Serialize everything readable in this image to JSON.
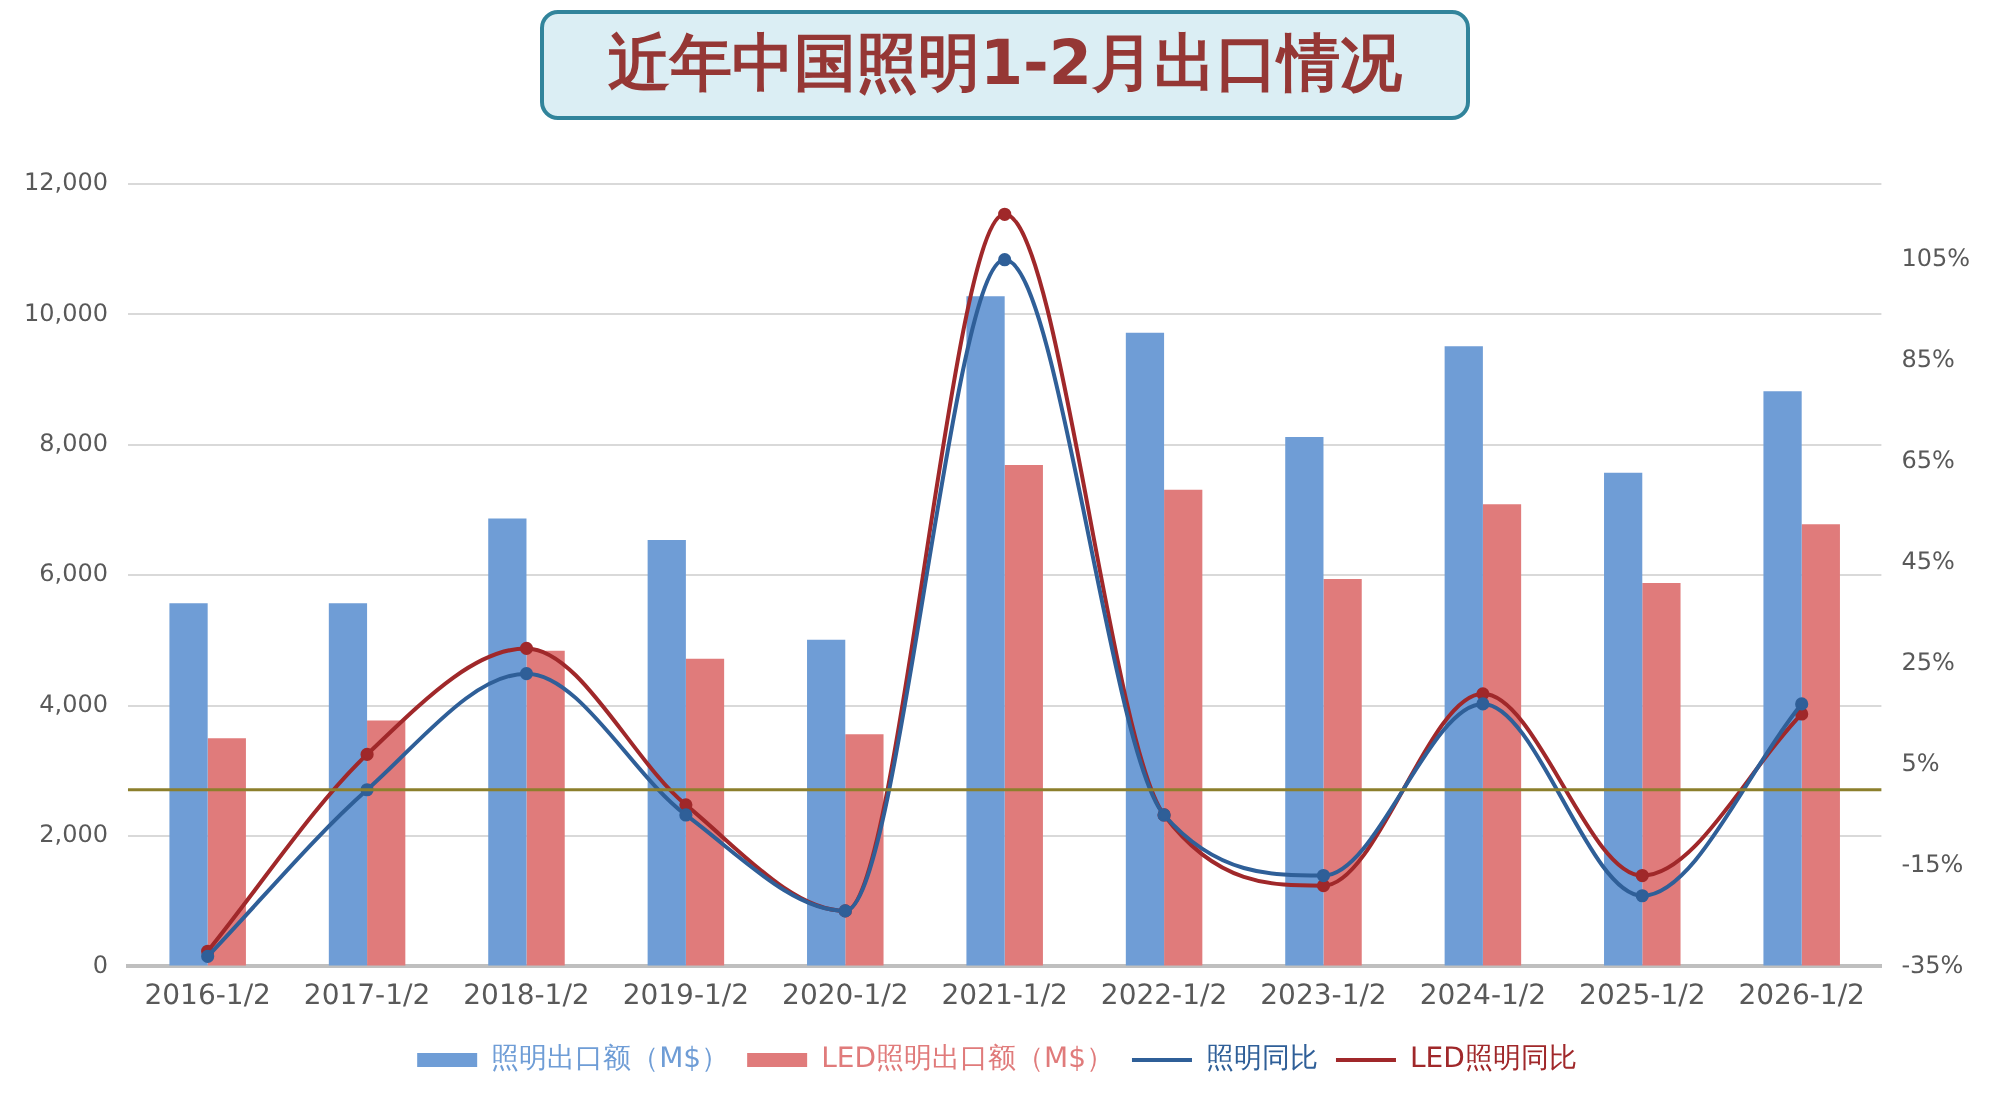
{
  "chart_data": {
    "type": "bar",
    "title": "近年中国照明1-2月出口情况",
    "categories": [
      "2016-1/2",
      "2017-1/2",
      "2018-1/2",
      "2019-1/2",
      "2020-1/2",
      "2021-1/2",
      "2022-1/2",
      "2023-1/2",
      "2024-1/2",
      "2025-1/2",
      "2026-1/2"
    ],
    "series": [
      {
        "name": "照明出口额（M$）",
        "color": "#6f9dd6",
        "values": [
          5570,
          5570,
          6870,
          6540,
          5010,
          10280,
          9720,
          8120,
          9510,
          7570,
          8820
        ]
      },
      {
        "name": "LED照明出口额（M$）",
        "color": "#e07b7b",
        "values": [
          3500,
          3770,
          4840,
          4720,
          3560,
          7690,
          7310,
          5940,
          7090,
          5880,
          6780
        ]
      },
      {
        "name": "照明同比",
        "type": "line",
        "axis": "y2",
        "color": "#2f5f98",
        "values": [
          -33,
          0,
          23,
          -5,
          -24,
          105,
          -5,
          -17,
          17,
          -21,
          17
        ]
      },
      {
        "name": "LED照明同比",
        "type": "line",
        "axis": "y2",
        "color": "#a0282a",
        "values": [
          -32,
          7,
          28,
          -3,
          -24,
          114,
          -5,
          -19,
          19,
          -17,
          15
        ]
      }
    ],
    "ylim": [
      0,
      12000
    ],
    "yticks": [
      0,
      {
        "value": 2000,
        "label": "2,000"
      },
      {
        "value": 4000,
        "label": "4,000"
      },
      {
        "value": 6000,
        "label": "6,000"
      },
      {
        "value": 8000,
        "label": "8,000"
      },
      {
        "value": 10000,
        "label": "10,000"
      },
      {
        "value": 12000,
        "label": "12,000"
      }
    ],
    "y2lim": [
      -35,
      120
    ],
    "y2ticks": [
      {
        "value": -35,
        "label": "-35%"
      },
      {
        "value": -15,
        "label": "-15%"
      },
      {
        "value": 5,
        "label": "5%"
      },
      {
        "value": 25,
        "label": "25%"
      },
      {
        "value": 45,
        "label": "45%"
      },
      {
        "value": 65,
        "label": "65%"
      },
      {
        "value": 85,
        "label": "85%"
      },
      {
        "value": 105,
        "label": "105%"
      }
    ],
    "ref_lines": [
      {
        "axis": "y2",
        "value": 0,
        "color": "#8c7f2c"
      }
    ],
    "grid": "y",
    "legend": "bottom",
    "marker": "circle",
    "line_style": "solid"
  }
}
